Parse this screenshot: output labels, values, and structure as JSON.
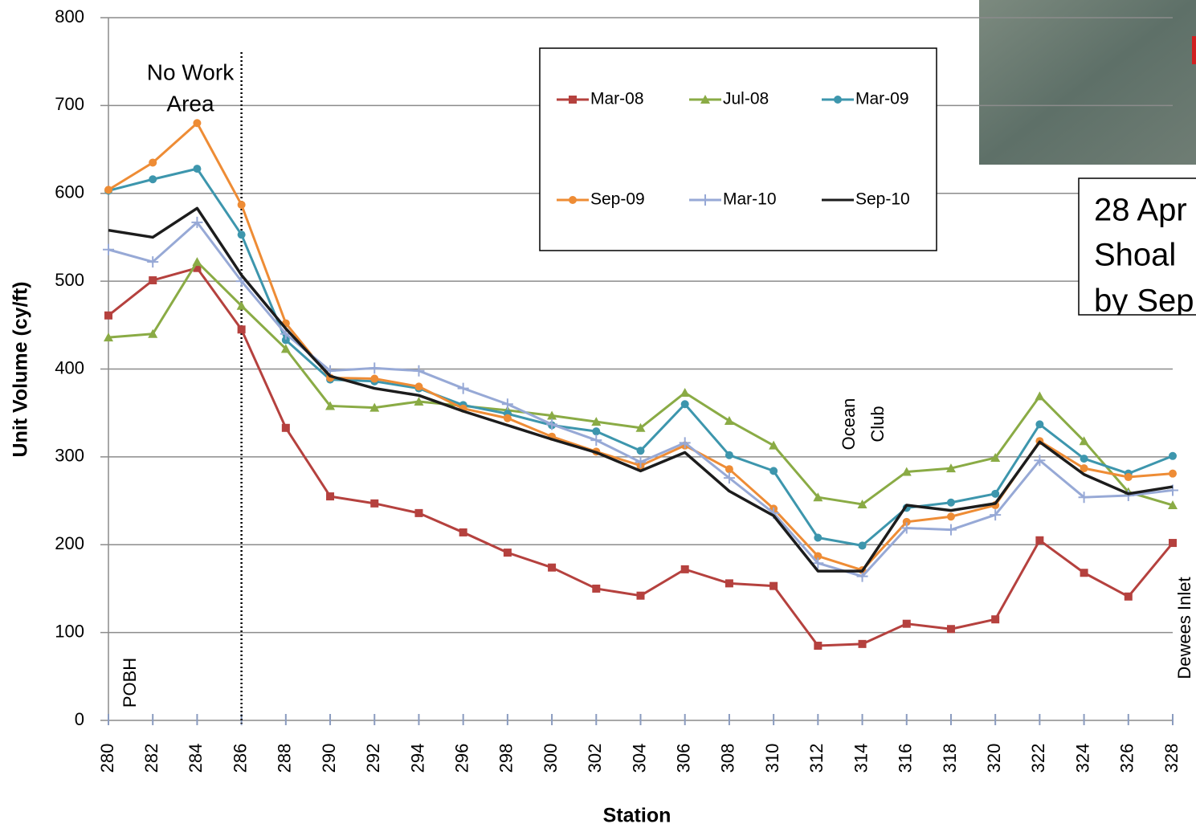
{
  "chart_data": {
    "type": "line",
    "x": [
      280,
      282,
      284,
      286,
      288,
      290,
      292,
      294,
      296,
      298,
      300,
      302,
      304,
      306,
      308,
      310,
      312,
      314,
      316,
      318,
      320,
      322,
      324,
      326,
      328
    ],
    "xlim": [
      280,
      328
    ],
    "xticks": [
      280,
      282,
      284,
      286,
      288,
      290,
      292,
      294,
      296,
      298,
      300,
      302,
      304,
      306,
      308,
      310,
      312,
      314,
      316,
      318,
      320,
      322,
      324,
      326,
      328
    ],
    "ylim": [
      0,
      800
    ],
    "yticks": [
      0,
      100,
      200,
      300,
      400,
      500,
      600,
      700,
      800
    ],
    "grid": true,
    "xlabel": "Station",
    "ylabel": "Unit Volume  (cy/ft)",
    "divider_x": 286,
    "annotations": {
      "no_work_area": [
        "No Work",
        "Area"
      ],
      "pobh": "POBH",
      "ocean_club": [
        "Ocean",
        "Club"
      ],
      "dewees_inlet": "Dewees Inlet",
      "note": [
        "28 Apr",
        "Shoal",
        "by Sep"
      ]
    },
    "series": [
      {
        "name": "Mar-08",
        "color": "#b5413e",
        "marker": "square",
        "values": [
          461,
          501,
          515,
          445,
          333,
          255,
          247,
          236,
          214,
          191,
          174,
          150,
          142,
          172,
          156,
          153,
          85,
          87,
          110,
          104,
          115,
          205,
          168,
          141,
          202
        ]
      },
      {
        "name": "Jul-08",
        "color": "#8aab45",
        "marker": "triangle",
        "values": [
          436,
          440,
          522,
          472,
          423,
          358,
          356,
          363,
          358,
          353,
          347,
          340,
          333,
          373,
          341,
          313,
          254,
          246,
          283,
          287,
          299,
          369,
          318,
          260,
          245
        ]
      },
      {
        "name": "Mar-09",
        "color": "#3d96ad",
        "marker": "circle",
        "values": [
          603,
          616,
          628,
          553,
          433,
          388,
          386,
          378,
          359,
          349,
          336,
          329,
          307,
          360,
          302,
          284,
          208,
          199,
          242,
          248,
          258,
          337,
          298,
          281,
          301
        ]
      },
      {
        "name": "Sep-09",
        "color": "#ee8c35",
        "marker": "circle",
        "values": [
          604,
          635,
          680,
          587,
          452,
          390,
          389,
          380,
          355,
          344,
          323,
          306,
          290,
          313,
          286,
          241,
          187,
          171,
          226,
          232,
          245,
          318,
          287,
          277,
          281
        ]
      },
      {
        "name": "Mar-10",
        "color": "#97a9d6",
        "marker": "plus",
        "values": [
          536,
          522,
          567,
          500,
          440,
          398,
          401,
          398,
          378,
          360,
          337,
          319,
          294,
          316,
          276,
          236,
          179,
          164,
          219,
          217,
          234,
          296,
          254,
          256,
          262
        ]
      },
      {
        "name": "Sep-10",
        "color": "#1c1c1c",
        "marker": "none",
        "values": [
          558,
          550,
          583,
          507,
          446,
          392,
          378,
          370,
          352,
          336,
          320,
          305,
          284,
          305,
          261,
          233,
          170,
          170,
          245,
          239,
          247,
          317,
          280,
          258,
          266
        ]
      }
    ]
  }
}
